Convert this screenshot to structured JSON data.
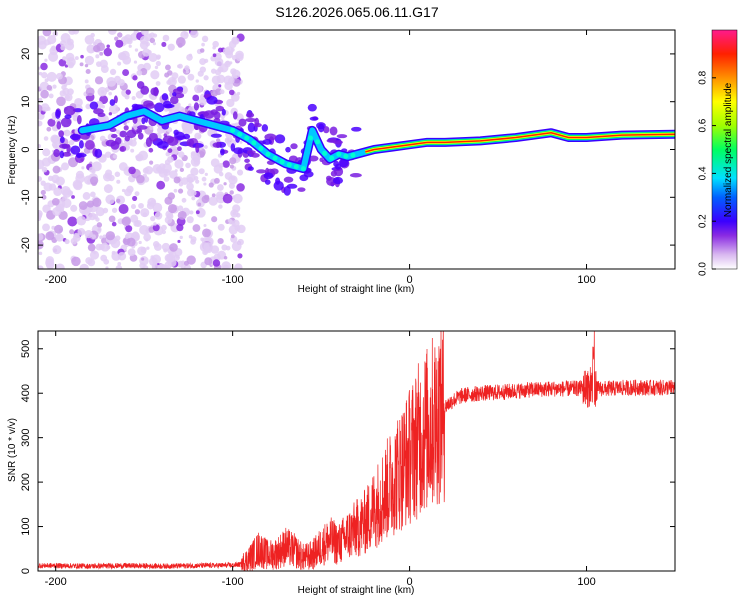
{
  "title": "S126.2026.065.06.11.G17",
  "chart_data": [
    {
      "type": "heatmap",
      "name": "spectrogram",
      "xlabel": "Height of straight line (km)",
      "ylabel": "Frequency (Hz)",
      "xlim": [
        -210,
        150
      ],
      "ylim": [
        -25,
        25
      ],
      "xticks": [
        -200,
        -100,
        0,
        100
      ],
      "yticks": [
        -20,
        -10,
        0,
        10,
        20
      ],
      "colorbar": {
        "label": "Normalized spectral amplitude",
        "range": [
          0.0,
          1.0
        ],
        "ticks": [
          0.0,
          0.2,
          0.4,
          0.6,
          0.8
        ],
        "colors": [
          "#ffffff",
          "#d9b8f0",
          "#8a2be2",
          "#3a00ff",
          "#0060ff",
          "#00e0ff",
          "#00ff60",
          "#a0ff00",
          "#ffff00",
          "#ff9000",
          "#ff2000",
          "#ff1a8c"
        ]
      },
      "ridge": {
        "x": [
          -185,
          -170,
          -160,
          -150,
          -140,
          -130,
          -100,
          -90,
          -80,
          -70,
          -60,
          -55,
          -50,
          -45,
          -40,
          -35,
          -30,
          -25,
          -20,
          -10,
          0,
          10,
          20,
          40,
          60,
          80,
          90,
          100,
          120,
          150
        ],
        "y": [
          4,
          5,
          7,
          8,
          6,
          7,
          4,
          2,
          -1,
          -3,
          -4,
          4,
          0,
          -2,
          -1,
          -1.5,
          -1,
          -0.5,
          0,
          0.5,
          1,
          1.5,
          1.5,
          1.8,
          2.5,
          3.5,
          2.5,
          2.5,
          3,
          3.2
        ]
      }
    },
    {
      "type": "line",
      "name": "snr",
      "xlabel": "Height of straight line (km)",
      "ylabel": "SNR (10 * v/v)",
      "xlim": [
        -210,
        150
      ],
      "ylim": [
        0,
        540
      ],
      "xticks": [
        -200,
        -100,
        0,
        100
      ],
      "yticks": [
        0,
        100,
        200,
        300,
        400,
        500
      ],
      "color": "#ee2222",
      "series": [
        {
          "name": "SNR",
          "x": [
            -210,
            -200,
            -180,
            -160,
            -140,
            -120,
            -100,
            -95,
            -90,
            -85,
            -80,
            -75,
            -70,
            -65,
            -60,
            -55,
            -50,
            -45,
            -40,
            -35,
            -30,
            -25,
            -20,
            -15,
            -10,
            -5,
            0,
            5,
            10,
            15,
            20,
            25,
            30,
            40,
            50,
            60,
            70,
            80,
            90,
            100,
            110,
            120,
            130,
            140,
            150
          ],
          "y": [
            12,
            12,
            11,
            12,
            11,
            12,
            13,
            15,
            30,
            50,
            35,
            40,
            55,
            45,
            30,
            35,
            55,
            70,
            60,
            80,
            95,
            110,
            140,
            170,
            200,
            230,
            260,
            295,
            320,
            345,
            370,
            385,
            395,
            400,
            402,
            405,
            408,
            410,
            410,
            412,
            410,
            412,
            413,
            412,
            413
          ]
        }
      ]
    }
  ]
}
